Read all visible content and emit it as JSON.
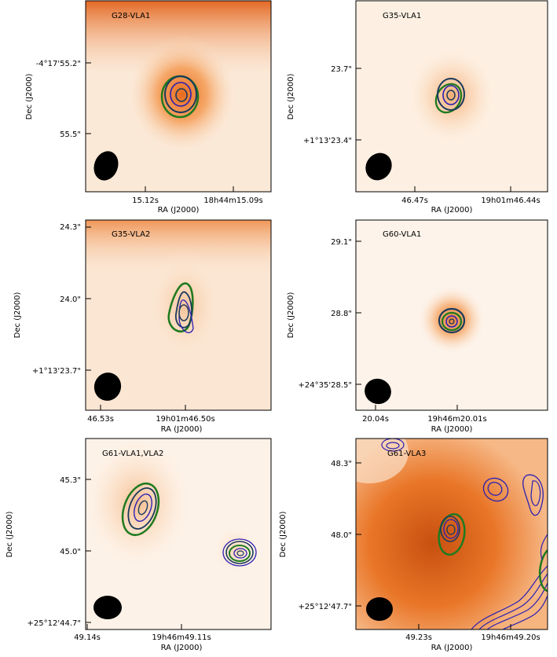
{
  "figure": {
    "panels": [
      {
        "label": "G28-VLA1",
        "ylabel": "Dec (J2000)",
        "xlabel": "RA (J2000)",
        "yticks": [
          "-4°17'55.2\"",
          "55.5\""
        ],
        "xticks": [
          "15.12s",
          "18h44m15.09s"
        ]
      },
      {
        "label": "G35-VLA1",
        "ylabel": "Dec (J2000)",
        "xlabel": "RA (J2000)",
        "yticks": [
          "23.7\"",
          "+1°13'23.4\""
        ],
        "xticks": [
          "46.47s",
          "19h01m46.44s"
        ]
      },
      {
        "label": "G35-VLA2",
        "ylabel": "Dec (J2000)",
        "xlabel": "RA (J2000)",
        "yticks": [
          "24.3\"",
          "24.0\"",
          "+1°13'23.7\""
        ],
        "xticks": [
          "46.53s",
          "19h01m46.50s"
        ]
      },
      {
        "label": "G60-VLA1",
        "ylabel": "Dec (J2000)",
        "xlabel": "RA (J2000)",
        "yticks": [
          "29.1\"",
          "28.8\"",
          "+24°35'28.5\""
        ],
        "xticks": [
          "20.04s",
          "19h46m20.01s"
        ]
      },
      {
        "label": "G61-VLA1,VLA2",
        "ylabel": "Dec (J2000)",
        "xlabel": "RA (J2000)",
        "yticks": [
          "45.3\"",
          "45.0\"",
          "+25°12'44.7\""
        ],
        "xticks": [
          "49.14s",
          "19h46m49.11s"
        ]
      },
      {
        "label": "G61-VLA3",
        "ylabel": "Dec (J2000)",
        "xlabel": "RA (J2000)",
        "yticks": [
          "48.3\"",
          "48.0\"",
          "+25°12'47.7\""
        ],
        "xticks": [
          "49.23s",
          "19h46m49.20s"
        ]
      }
    ]
  },
  "chart_data": {
    "type": "heatmap",
    "colormap": "white-to-orange",
    "contour_colors": {
      "outer": "#1f7a1f",
      "inner": "#2a1fb3",
      "dark": "#1a3a5c"
    },
    "panels": [
      {
        "label": "G28-VLA1",
        "ra_ticks": [
          "15.12s",
          "18h44m15.09s"
        ],
        "dec_ticks": [
          "-4°17'55.2\"",
          "55.5\""
        ]
      },
      {
        "label": "G35-VLA1",
        "ra_ticks": [
          "46.47s",
          "19h01m46.44s"
        ],
        "dec_ticks": [
          "23.7\"",
          "+1°13'23.4\""
        ]
      },
      {
        "label": "G35-VLA2",
        "ra_ticks": [
          "46.53s",
          "19h01m46.50s"
        ],
        "dec_ticks": [
          "24.3\"",
          "24.0\"",
          "+1°13'23.7\""
        ]
      },
      {
        "label": "G60-VLA1",
        "ra_ticks": [
          "20.04s",
          "19h46m20.01s"
        ],
        "dec_ticks": [
          "29.1\"",
          "28.8\"",
          "+24°35'28.5\""
        ]
      },
      {
        "label": "G61-VLA1,VLA2",
        "ra_ticks": [
          "49.14s",
          "19h46m49.11s"
        ],
        "dec_ticks": [
          "45.3\"",
          "45.0\"",
          "+25°12'44.7\""
        ]
      },
      {
        "label": "G61-VLA3",
        "ra_ticks": [
          "49.23s",
          "19h46m49.20s"
        ],
        "dec_ticks": [
          "48.3\"",
          "48.0\"",
          "+25°12'47.7\""
        ]
      }
    ]
  }
}
